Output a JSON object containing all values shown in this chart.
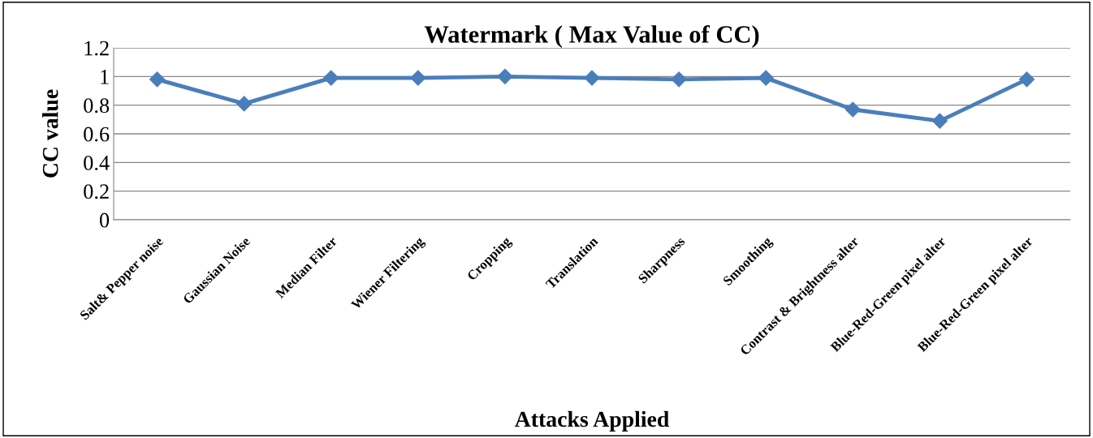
{
  "chart_data": {
    "type": "line",
    "title": "Watermark ( Max Value of CC)",
    "xlabel": "Attacks Applied",
    "ylabel": "CC value",
    "categories": [
      "Salt& Pepper noise",
      "Gaussian Noise",
      "Median Filter",
      "Wiener Filtering",
      "Cropping",
      "Translation",
      "Sharpness",
      "Smoothing",
      "Contrast & Brightness alter",
      "Blue-Red-Green pixel alter",
      "Blue-Red-Green pixel alter"
    ],
    "series": [
      {
        "color": "#4a7ebb",
        "values": [
          0.98,
          0.81,
          0.99,
          0.99,
          1.0,
          0.99,
          0.98,
          0.99,
          0.77,
          0.69,
          0.98
        ]
      }
    ],
    "ylim": [
      0,
      1.2
    ],
    "yticks": [
      0,
      0.2,
      0.4,
      0.6,
      0.8,
      1,
      1.2
    ],
    "grid": "y",
    "marker": "diamond",
    "line_style": "solid",
    "legend": false
  }
}
